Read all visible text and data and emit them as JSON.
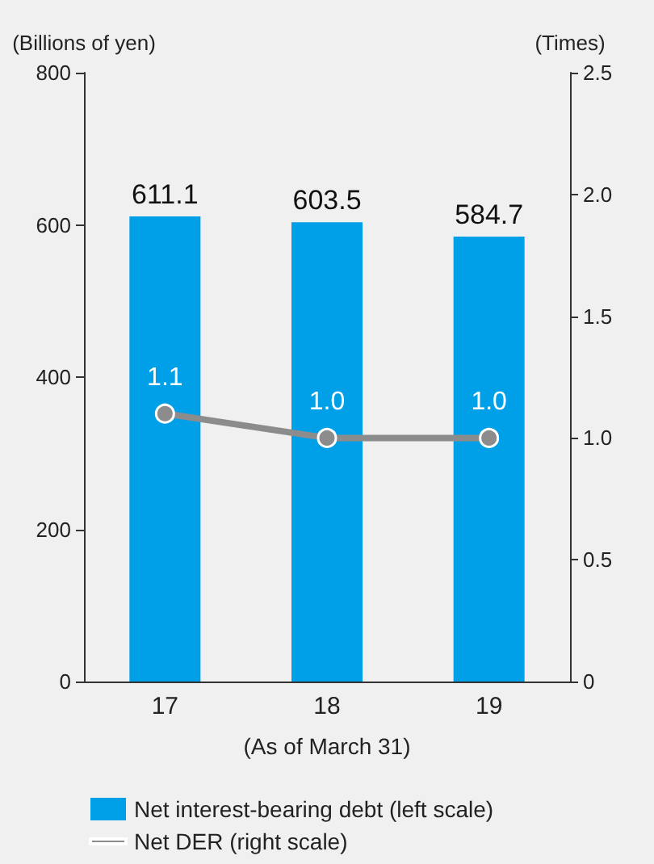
{
  "chart_data": {
    "type": "bar",
    "categories": [
      "17",
      "18",
      "19"
    ],
    "xlabel": "(As of March 31)",
    "ylabel": "(Billions of yen)",
    "y2label": "(Times)",
    "series": [
      {
        "name": "Net interest-bearing debt (left scale)",
        "color": "#00a0e9",
        "values": [
          611.1,
          603.5,
          584.7
        ]
      },
      {
        "name": "Net DER (right scale)",
        "type": "line",
        "axis": "y2",
        "color": "#8c8c8c",
        "values": [
          1.1,
          1.0,
          1.0
        ],
        "value_labels": [
          "1.1",
          "1.0",
          "1.0"
        ]
      }
    ],
    "ylim": [
      0,
      800
    ],
    "yticks": [
      0,
      200,
      400,
      600,
      800
    ],
    "y2lim": [
      0,
      2.5
    ],
    "y2ticks": [
      0,
      0.5,
      {
        "value": 1,
        "label": "1.0"
      },
      1.5,
      {
        "value": 2,
        "label": "2.0"
      },
      2.5
    ],
    "data_labels": true,
    "marker": "circle",
    "line_style": "solid",
    "grid": false,
    "legend": "bottom left"
  }
}
